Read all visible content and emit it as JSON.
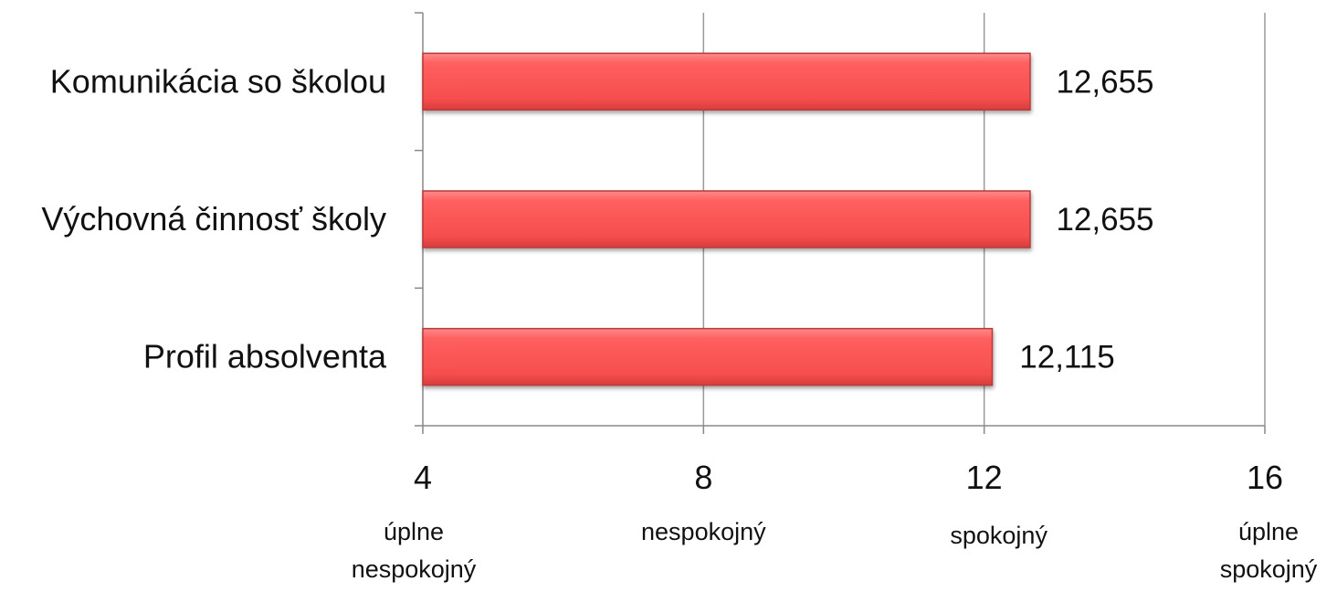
{
  "chart_data": {
    "type": "bar",
    "orientation": "horizontal",
    "categories": [
      "Komunikácia so školou",
      "Výchovná činnosť školy",
      "Profil absolventa"
    ],
    "values": [
      12.655,
      12.655,
      12.115
    ],
    "value_labels": [
      "12,655",
      "12,655",
      "12,115"
    ],
    "xlim": [
      4,
      16
    ],
    "x_ticks": [
      4,
      8,
      12,
      16
    ],
    "x_tick_labels": [
      "4",
      "8",
      "12",
      "16"
    ],
    "x_tick_descriptions": [
      [
        "úplne",
        "nespokojný"
      ],
      [
        "nespokojný"
      ],
      [
        "spokojný"
      ],
      [
        "úplne",
        "spokojný"
      ]
    ],
    "grid": "vertical",
    "bar_color": "#ff5a5a",
    "bar_edge_color": "#b83a3a",
    "title": "",
    "xlabel": "",
    "ylabel": ""
  }
}
